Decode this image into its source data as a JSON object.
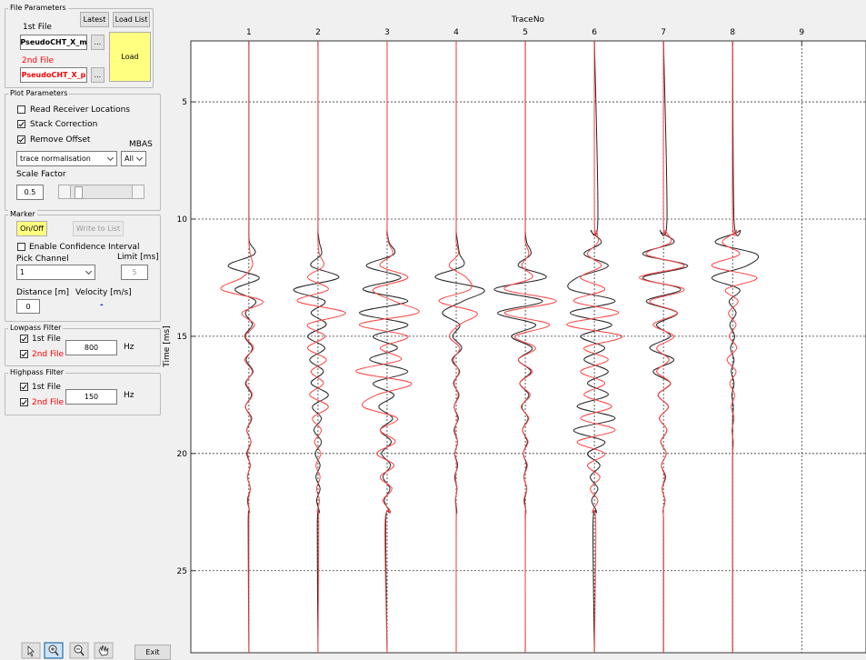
{
  "file_parameters": {
    "title": "File Parameters",
    "latest": "Latest",
    "load_list": "Load List",
    "first_file_label": "1st File",
    "first_file": "PseudoCHT_X_m",
    "first_browse": "...",
    "second_file_label": "2nd File",
    "second_file": "PseudoCHT_X_p",
    "second_browse": "...",
    "load": "Load"
  },
  "plot_parameters": {
    "title": "Plot Parameters",
    "read_receiver": "Read Receiver Locations",
    "stack_correction": "Stack Correction",
    "remove_offset": "Remove Offset",
    "mbas_label": "MBAS",
    "normalisation": "trace normalisation",
    "mbas": "All",
    "scale_factor_label": "Scale Factor",
    "scale_factor": 0.5
  },
  "marker": {
    "title": "Marker",
    "on_off": "On/Off",
    "write_to_list": "Write to List",
    "confidence": "Enable Confidence Interval",
    "pick_channel_label": "Pick Channel",
    "limit_label": "Limit [ms]",
    "pick_channel": 1,
    "limit": 5,
    "distance_label": "Distance [m]",
    "velocity_label": "Velocity [m/s]",
    "distance": 0,
    "velocity": "-"
  },
  "lowpass": {
    "title": "Lowpass Filter",
    "first": "1st File",
    "second": "2nd File",
    "value": 800,
    "unit": "Hz"
  },
  "highpass": {
    "title": "Highpass Filter",
    "first": "1st File",
    "second": "2nd File",
    "value": 150,
    "unit": "Hz"
  },
  "toolbar": {
    "exit": "Exit"
  },
  "chart_data": {
    "type": "line",
    "x_label": "TraceNo",
    "y_label": "Time [ms]",
    "xaxis_position": "top",
    "y_reversed": true,
    "grid": true,
    "xlim": [
      0.16,
      9.93
    ],
    "xticks": [
      1,
      2,
      3,
      4,
      5,
      6,
      7,
      8,
      9
    ],
    "ylim": [
      2.4,
      28.5
    ],
    "yticks": [
      5,
      10,
      15,
      20,
      25
    ],
    "time": [
      2.4,
      10,
      10.5,
      11,
      11.5,
      12,
      12.5,
      13,
      13.5,
      14,
      14.5,
      15,
      15.5,
      16,
      16.5,
      17,
      17.5,
      18,
      18.5,
      19,
      19.5,
      20,
      20.5,
      21,
      21.5,
      22,
      22.5,
      23,
      28.5
    ],
    "series": [
      {
        "color": "#222222",
        "values": [
          1,
          1,
          1,
          1.01,
          1.08,
          0.7,
          1.15,
          0.8,
          1.1,
          0.95,
          1.05,
          0.94,
          1.05,
          0.96,
          1.06,
          0.95,
          1.04,
          0.95,
          1.04,
          0.97,
          1.03,
          0.97,
          1.02,
          0.98,
          1.02,
          0.98,
          1.01,
          0.99,
          1
        ]
      },
      {
        "color": "#ff4444",
        "values": [
          1,
          1,
          1,
          1,
          1.02,
          1.05,
          0.9,
          0.6,
          1.2,
          0.9,
          1.08,
          0.95,
          1.07,
          0.94,
          1.05,
          0.96,
          1.05,
          0.95,
          1.03,
          0.97,
          1.03,
          0.98,
          1.02,
          0.98,
          1.02,
          0.99,
          1.01,
          1,
          1
        ]
      },
      {
        "color": "#222222",
        "values": [
          2,
          2,
          2,
          2.02,
          2.05,
          1.9,
          2.3,
          1.65,
          2.1,
          1.9,
          2.12,
          1.85,
          2.1,
          1.88,
          2.08,
          1.9,
          2.15,
          1.92,
          2.05,
          1.94,
          2.05,
          1.96,
          2.03,
          1.97,
          2.03,
          1.98,
          2.02,
          1.99,
          2
        ]
      },
      {
        "color": "#ff4444",
        "values": [
          2,
          2,
          2,
          2,
          2.02,
          2.08,
          1.85,
          2.15,
          1.7,
          2.4,
          1.85,
          2.1,
          1.85,
          2.12,
          1.9,
          2.08,
          1.88,
          2.15,
          1.92,
          2.05,
          1.95,
          2.04,
          1.97,
          2.03,
          1.98,
          2.02,
          1.99,
          2.01,
          2
        ]
      },
      {
        "color": "#222222",
        "values": [
          3,
          3,
          3,
          3.03,
          3.1,
          2.7,
          3.2,
          2.65,
          3.3,
          2.6,
          3.3,
          2.8,
          3.15,
          2.75,
          3.3,
          2.8,
          3.1,
          2.88,
          3.08,
          2.9,
          3.06,
          2.92,
          3.05,
          2.94,
          3.04,
          2.96,
          3.03,
          2.98,
          3
        ]
      },
      {
        "color": "#ff4444",
        "values": [
          3,
          3,
          3,
          3.02,
          3.08,
          2.9,
          3.3,
          2.8,
          3.1,
          3.45,
          2.6,
          3.3,
          2.9,
          3.2,
          2.55,
          3.35,
          2.85,
          2.65,
          3.15,
          2.9,
          3.12,
          2.85,
          3.1,
          2.9,
          3.07,
          2.94,
          3.05,
          2.97,
          3
        ]
      },
      {
        "color": "#222222",
        "values": [
          4,
          4,
          4,
          4.02,
          4.05,
          4.1,
          3.7,
          4.4,
          4.1,
          3.8,
          4.05,
          3.95,
          4.08,
          3.94,
          4.05,
          3.96,
          4.04,
          3.97,
          4.03,
          3.97,
          4.02,
          3.98,
          4.02,
          3.98,
          4.01,
          3.99,
          4.01,
          4,
          4
        ]
      },
      {
        "color": "#ff4444",
        "values": [
          4,
          4,
          4,
          4,
          4.03,
          3.9,
          4.15,
          4.2,
          3.75,
          4.3,
          4.05,
          3.9,
          4.05,
          3.96,
          4.04,
          3.97,
          4.03,
          3.97,
          4.02,
          3.98,
          4.02,
          3.98,
          4.01,
          3.99,
          4.01,
          3.99,
          4,
          4,
          4
        ]
      },
      {
        "color": "#222222",
        "values": [
          5,
          5,
          5,
          5.02,
          5.08,
          4.9,
          5.3,
          4.55,
          5.25,
          4.6,
          5.15,
          4.8,
          5.1,
          4.9,
          5.08,
          4.92,
          5.05,
          4.95,
          5.04,
          4.96,
          5.03,
          4.97,
          5.02,
          4.98,
          5.02,
          4.99,
          5.01,
          5,
          5
        ]
      },
      {
        "color": "#ff4444",
        "values": [
          5,
          5,
          5,
          5,
          5.05,
          4.95,
          5.1,
          4.7,
          5.45,
          4.7,
          5.35,
          4.85,
          5.15,
          4.9,
          5.1,
          4.92,
          5.07,
          4.94,
          5.05,
          4.96,
          5.04,
          4.97,
          5.03,
          4.98,
          5.02,
          4.98,
          5.01,
          5,
          5
        ]
      },
      {
        "color": "#222222",
        "values": [
          6,
          6.05,
          5.95,
          6.1,
          5.85,
          6.2,
          5.75,
          5.65,
          6.3,
          5.65,
          6.25,
          5.8,
          6.15,
          5.85,
          6.2,
          5.9,
          6.2,
          5.75,
          6.3,
          5.7,
          6.15,
          5.9,
          6.08,
          5.94,
          6.05,
          5.96,
          6.03,
          5.98,
          6
        ]
      },
      {
        "color": "#ff4444",
        "values": [
          6,
          6,
          6.03,
          6.05,
          5.9,
          6.1,
          5.8,
          6.15,
          5.7,
          6.35,
          5.6,
          6.4,
          5.85,
          6.2,
          5.8,
          6.15,
          5.85,
          6.25,
          5.8,
          6.3,
          5.75,
          6.15,
          5.9,
          6.08,
          5.94,
          6.05,
          5.97,
          6.02,
          6
        ]
      },
      {
        "color": "#222222",
        "values": [
          7,
          7.05,
          6.95,
          7.15,
          6.7,
          7.35,
          6.7,
          7.25,
          6.75,
          7.2,
          6.9,
          7.1,
          6.8,
          7.15,
          6.85,
          7.1,
          6.92,
          7.07,
          6.94,
          7.05,
          6.96,
          7.04,
          6.97,
          7.03,
          6.98,
          7.02,
          6.99,
          7,
          7
        ]
      },
      {
        "color": "#ff4444",
        "values": [
          7,
          7,
          7.03,
          7.1,
          6.75,
          7.3,
          6.65,
          7.3,
          6.8,
          7.2,
          6.85,
          7.15,
          6.9,
          7.08,
          6.9,
          7.1,
          6.92,
          7.07,
          6.94,
          7.05,
          6.96,
          7.04,
          6.97,
          7.02,
          6.98,
          7.02,
          6.99,
          7,
          7
        ]
      },
      {
        "color": "#222222",
        "values": [
          8,
          8.02,
          8.1,
          7.75,
          8.35,
          8.2,
          7.7,
          8.1,
          7.95,
          8.05,
          7.96,
          8.03,
          7.97,
          8.02,
          7.98,
          8.02,
          7.99,
          8.01,
          8,
          8,
          8,
          8,
          8,
          8,
          8,
          8,
          8,
          8,
          8
        ]
      },
      {
        "color": "#ff4444",
        "values": [
          8,
          8,
          8.05,
          7.85,
          8.1,
          7.7,
          8.35,
          7.9,
          8.08,
          7.94,
          8.05,
          7.95,
          8.06,
          7.92,
          8.05,
          7.96,
          8.03,
          7.98,
          8.02,
          7.99,
          8.01,
          8,
          8,
          8,
          8,
          8,
          8,
          8,
          8
        ]
      }
    ]
  }
}
